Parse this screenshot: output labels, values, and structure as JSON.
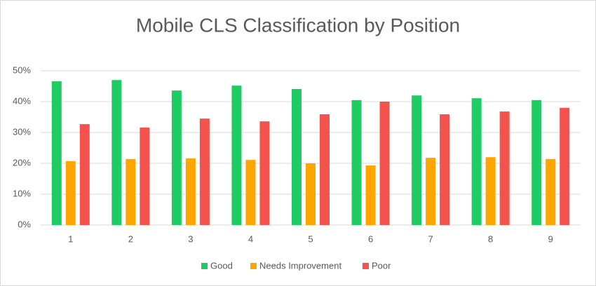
{
  "chart_data": {
    "type": "bar",
    "title": "Mobile CLS Classification by Position",
    "categories": [
      "1",
      "2",
      "3",
      "4",
      "5",
      "6",
      "7",
      "8",
      "9"
    ],
    "series": [
      {
        "name": "Good",
        "color": "#1fcc63",
        "values": [
          46.6,
          47.0,
          43.6,
          45.2,
          44.1,
          40.5,
          42.0,
          41.1,
          40.5
        ]
      },
      {
        "name": "Needs Improvement",
        "color": "#ffa500",
        "values": [
          20.7,
          21.4,
          21.6,
          21.1,
          20.0,
          19.3,
          21.8,
          22.0,
          21.4
        ]
      },
      {
        "name": "Poor",
        "color": "#f4524d",
        "values": [
          32.7,
          31.6,
          34.5,
          33.6,
          35.9,
          40.0,
          35.9,
          36.8,
          38.0
        ]
      }
    ],
    "ylim": [
      0,
      50
    ],
    "yticks": [
      {
        "value": 0,
        "label": "0%"
      },
      {
        "value": 10,
        "label": "10%"
      },
      {
        "value": 20,
        "label": "20%"
      },
      {
        "value": 30,
        "label": "30%"
      },
      {
        "value": 40,
        "label": "40%"
      },
      {
        "value": 50,
        "label": "50%"
      }
    ],
    "grid": true,
    "legend": "bottom"
  }
}
